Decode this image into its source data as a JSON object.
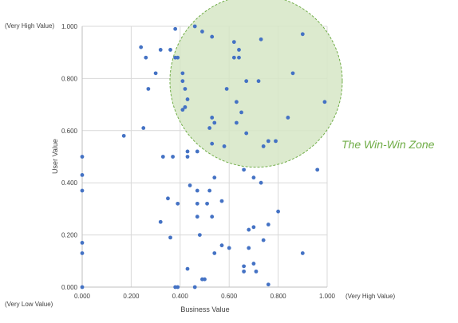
{
  "chart_data": {
    "type": "scatter",
    "xlabel": "Business Value",
    "ylabel": "User Value",
    "xlim": [
      0,
      1
    ],
    "ylim": [
      0,
      1
    ],
    "x_ticks": [
      "0.000",
      "0.200",
      "0.400",
      "0.600",
      "0.800",
      "1.000"
    ],
    "y_ticks": [
      "0.000",
      "0.200",
      "0.400",
      "0.600",
      "0.800",
      "1.000"
    ],
    "grid": true,
    "corner_labels": {
      "y_high": "(Very High Value)",
      "x_low_y_low": "(Very Low Value)",
      "x_high": "(Very High Value)"
    },
    "zone": {
      "label": "The Win-Win Zone",
      "center": [
        0.71,
        0.79
      ],
      "radius_x": 0.71,
      "fill": "#d6e6c6",
      "stroke": "#70ad47"
    },
    "marker_color": "#4472c4",
    "series": [
      {
        "points": [
          [
            0.46,
            1.0
          ],
          [
            0.38,
            0.99
          ],
          [
            0.49,
            0.98
          ],
          [
            0.9,
            0.97
          ],
          [
            0.53,
            0.96
          ],
          [
            0.73,
            0.95
          ],
          [
            0.62,
            0.94
          ],
          [
            0.24,
            0.92
          ],
          [
            0.32,
            0.91
          ],
          [
            0.36,
            0.91
          ],
          [
            0.64,
            0.91
          ],
          [
            0.26,
            0.88
          ],
          [
            0.38,
            0.88
          ],
          [
            0.39,
            0.88
          ],
          [
            0.62,
            0.88
          ],
          [
            0.64,
            0.88
          ],
          [
            0.3,
            0.82
          ],
          [
            0.41,
            0.82
          ],
          [
            0.86,
            0.82
          ],
          [
            0.41,
            0.79
          ],
          [
            0.67,
            0.79
          ],
          [
            0.72,
            0.79
          ],
          [
            0.42,
            0.76
          ],
          [
            0.27,
            0.76
          ],
          [
            0.59,
            0.76
          ],
          [
            0.43,
            0.72
          ],
          [
            0.63,
            0.71
          ],
          [
            0.99,
            0.71
          ],
          [
            0.42,
            0.69
          ],
          [
            0.41,
            0.68
          ],
          [
            0.65,
            0.67
          ],
          [
            0.84,
            0.65
          ],
          [
            0.53,
            0.65
          ],
          [
            0.54,
            0.63
          ],
          [
            0.63,
            0.63
          ],
          [
            0.52,
            0.61
          ],
          [
            0.25,
            0.61
          ],
          [
            0.67,
            0.59
          ],
          [
            0.17,
            0.58
          ],
          [
            0.76,
            0.56
          ],
          [
            0.79,
            0.56
          ],
          [
            0.53,
            0.55
          ],
          [
            0.74,
            0.54
          ],
          [
            0.58,
            0.54
          ],
          [
            0.43,
            0.52
          ],
          [
            0.47,
            0.52
          ],
          [
            0.0,
            0.5
          ],
          [
            0.33,
            0.5
          ],
          [
            0.37,
            0.5
          ],
          [
            0.43,
            0.5
          ],
          [
            0.66,
            0.45
          ],
          [
            0.96,
            0.45
          ],
          [
            0.0,
            0.43
          ],
          [
            0.54,
            0.42
          ],
          [
            0.7,
            0.42
          ],
          [
            0.73,
            0.4
          ],
          [
            0.44,
            0.39
          ],
          [
            0.0,
            0.37
          ],
          [
            0.47,
            0.37
          ],
          [
            0.52,
            0.37
          ],
          [
            0.35,
            0.34
          ],
          [
            0.57,
            0.33
          ],
          [
            0.39,
            0.32
          ],
          [
            0.47,
            0.32
          ],
          [
            0.51,
            0.32
          ],
          [
            0.8,
            0.29
          ],
          [
            0.47,
            0.27
          ],
          [
            0.53,
            0.27
          ],
          [
            0.32,
            0.25
          ],
          [
            0.76,
            0.24
          ],
          [
            0.7,
            0.23
          ],
          [
            0.68,
            0.22
          ],
          [
            0.48,
            0.2
          ],
          [
            0.36,
            0.19
          ],
          [
            0.74,
            0.18
          ],
          [
            0.0,
            0.17
          ],
          [
            0.57,
            0.16
          ],
          [
            0.6,
            0.15
          ],
          [
            0.68,
            0.15
          ],
          [
            0.0,
            0.13
          ],
          [
            0.54,
            0.13
          ],
          [
            0.9,
            0.13
          ],
          [
            0.7,
            0.09
          ],
          [
            0.66,
            0.08
          ],
          [
            0.43,
            0.07
          ],
          [
            0.66,
            0.06
          ],
          [
            0.71,
            0.06
          ],
          [
            0.49,
            0.03
          ],
          [
            0.5,
            0.03
          ],
          [
            0.76,
            0.01
          ],
          [
            0.0,
            0.0
          ],
          [
            0.38,
            0.0
          ],
          [
            0.39,
            0.0
          ],
          [
            0.46,
            0.0
          ]
        ]
      }
    ]
  }
}
